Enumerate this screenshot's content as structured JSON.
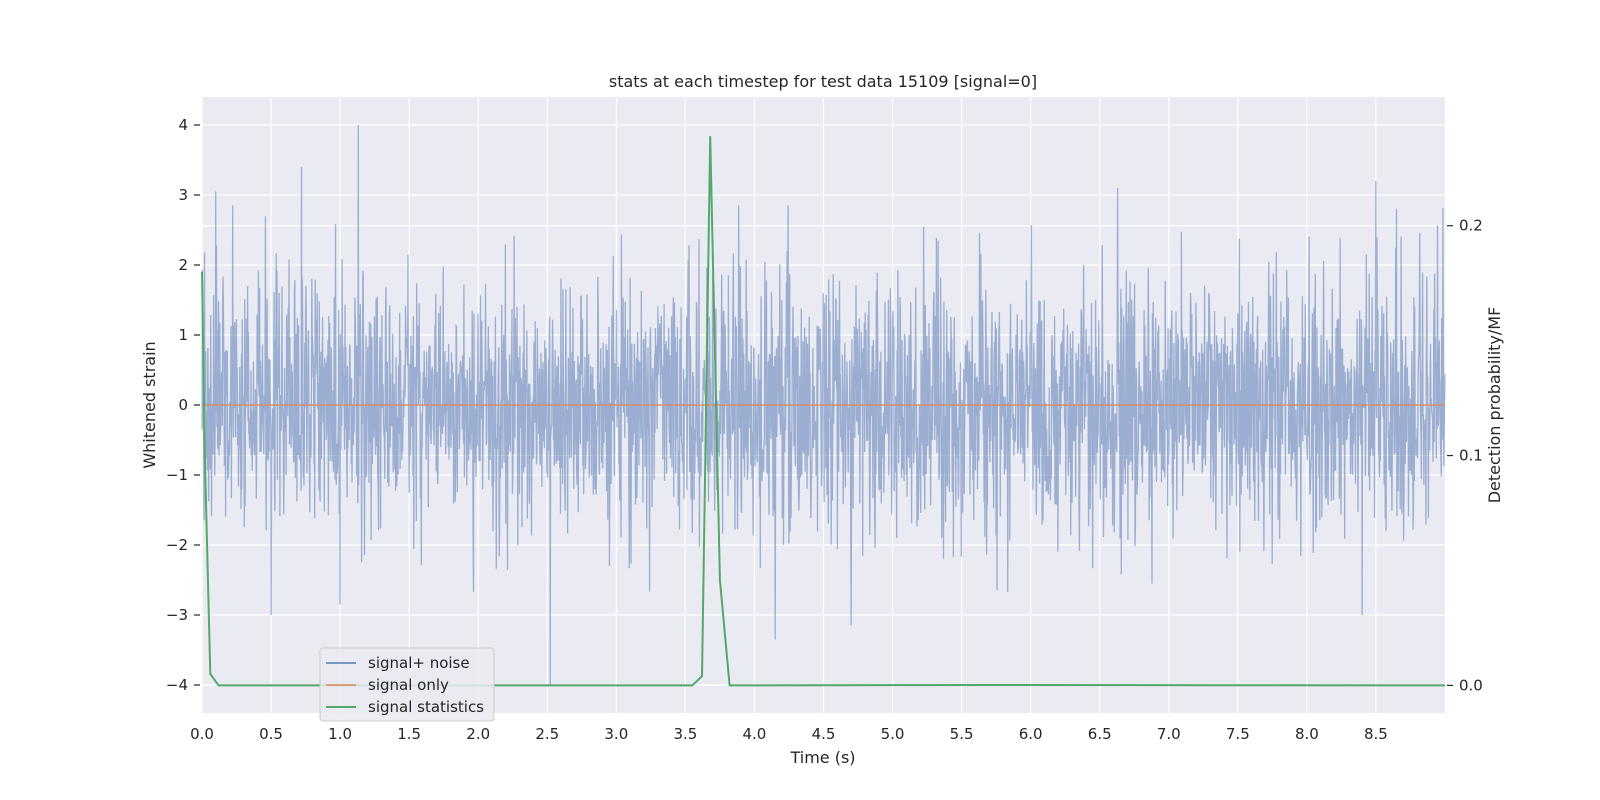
{
  "chart_data": {
    "type": "line",
    "title": "stats at each timestep for test data 15109 [signal=0]",
    "xlabel": "Time (s)",
    "ylabel": "Whitened strain",
    "y2label": "Detection probability/MF",
    "xlim": [
      0.0,
      9.0
    ],
    "ylim": [
      -4.4,
      4.4
    ],
    "y2lim": [
      -0.012,
      0.256
    ],
    "xticks": [
      "0.0",
      "0.5",
      "1.0",
      "1.5",
      "2.0",
      "2.5",
      "3.0",
      "3.5",
      "4.0",
      "4.5",
      "5.0",
      "5.5",
      "6.0",
      "6.5",
      "7.0",
      "7.5",
      "8.0",
      "8.5"
    ],
    "yticks": [
      "4",
      "3",
      "2",
      "1",
      "0",
      "−1",
      "−2",
      "−3",
      "−4"
    ],
    "y2ticks": [
      "0.2",
      "0.1",
      "0.0"
    ],
    "grid": true,
    "legend_position": "lower-left",
    "colors": {
      "plot_bg": "#eaeaf2",
      "grid": "#ffffff",
      "signal_noise": "#4c72b0",
      "signal_only": "#dd8452",
      "signal_statistics": "#55a868"
    },
    "series": [
      {
        "name": "signal+ noise",
        "axis": "left",
        "kind": "noise",
        "noise_std": 0.9,
        "peaks": [
          {
            "x": 1.13,
            "y": 4.0
          },
          {
            "x": 0.72,
            "y": 3.4
          },
          {
            "x": 0.1,
            "y": 3.05
          },
          {
            "x": 2.52,
            "y": -4.0
          },
          {
            "x": 4.15,
            "y": -3.35
          },
          {
            "x": 8.5,
            "y": 3.2
          },
          {
            "x": 6.63,
            "y": 3.1
          },
          {
            "x": 0.5,
            "y": -3.0
          },
          {
            "x": 4.7,
            "y": -3.15
          },
          {
            "x": 8.4,
            "y": -3.0
          }
        ]
      },
      {
        "name": "signal only",
        "axis": "left",
        "x": [
          0.0,
          9.0
        ],
        "y": [
          0.0,
          0.0
        ]
      },
      {
        "name": "signal statistics",
        "axis": "right",
        "x": [
          0.0,
          0.02,
          0.06,
          0.12,
          3.55,
          3.62,
          3.68,
          3.75,
          3.82,
          3.9,
          5.7,
          7.3,
          9.0
        ],
        "y": [
          0.18,
          0.1,
          0.005,
          0.0,
          0.0,
          0.004,
          0.239,
          0.046,
          0.0,
          0.0,
          0.0002,
          0.0001,
          0.0
        ]
      }
    ]
  }
}
